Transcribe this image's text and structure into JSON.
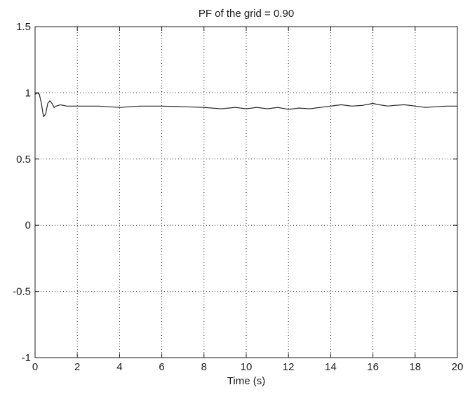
{
  "chart_data": {
    "type": "line",
    "title": "PF of the grid = 0.90",
    "xlabel": "Time (s)",
    "ylabel": "",
    "xlim": [
      0,
      20
    ],
    "ylim": [
      -1,
      1.5
    ],
    "xticks": [
      0,
      2,
      4,
      6,
      8,
      10,
      12,
      14,
      16,
      18,
      20
    ],
    "yticks": [
      -1,
      -0.5,
      0,
      0.5,
      1,
      1.5
    ],
    "xtick_labels": [
      "0",
      "2",
      "4",
      "6",
      "8",
      "10",
      "12",
      "14",
      "16",
      "18",
      "20"
    ],
    "ytick_labels": [
      "-1",
      "-0.5",
      "0",
      "0.5",
      "1",
      "1.5"
    ],
    "grid": true,
    "grid_style": "dotted",
    "line_color": "#222222",
    "series": [
      {
        "x": [
          0,
          0.1,
          0.2,
          0.3,
          0.4,
          0.5,
          0.6,
          0.7,
          0.8,
          0.9,
          1.0,
          1.2,
          1.5,
          2.0,
          3.0,
          4.0,
          5.0,
          6.0,
          7.0,
          8.0,
          8.8,
          9.5,
          10.0,
          10.5,
          11.0,
          11.5,
          12.0,
          12.5,
          13.0,
          13.5,
          14.0,
          14.5,
          15.0,
          15.5,
          16.0,
          16.3,
          16.7,
          17.0,
          17.5,
          18.0,
          18.5,
          19.0,
          19.5,
          20.0
        ],
        "y": [
          0.99,
          1.0,
          0.99,
          0.92,
          0.82,
          0.84,
          0.92,
          0.94,
          0.92,
          0.89,
          0.9,
          0.91,
          0.9,
          0.9,
          0.9,
          0.89,
          0.9,
          0.9,
          0.895,
          0.89,
          0.88,
          0.89,
          0.88,
          0.89,
          0.88,
          0.89,
          0.875,
          0.885,
          0.88,
          0.89,
          0.9,
          0.91,
          0.9,
          0.905,
          0.92,
          0.91,
          0.9,
          0.905,
          0.91,
          0.9,
          0.89,
          0.895,
          0.9,
          0.9
        ]
      }
    ]
  }
}
